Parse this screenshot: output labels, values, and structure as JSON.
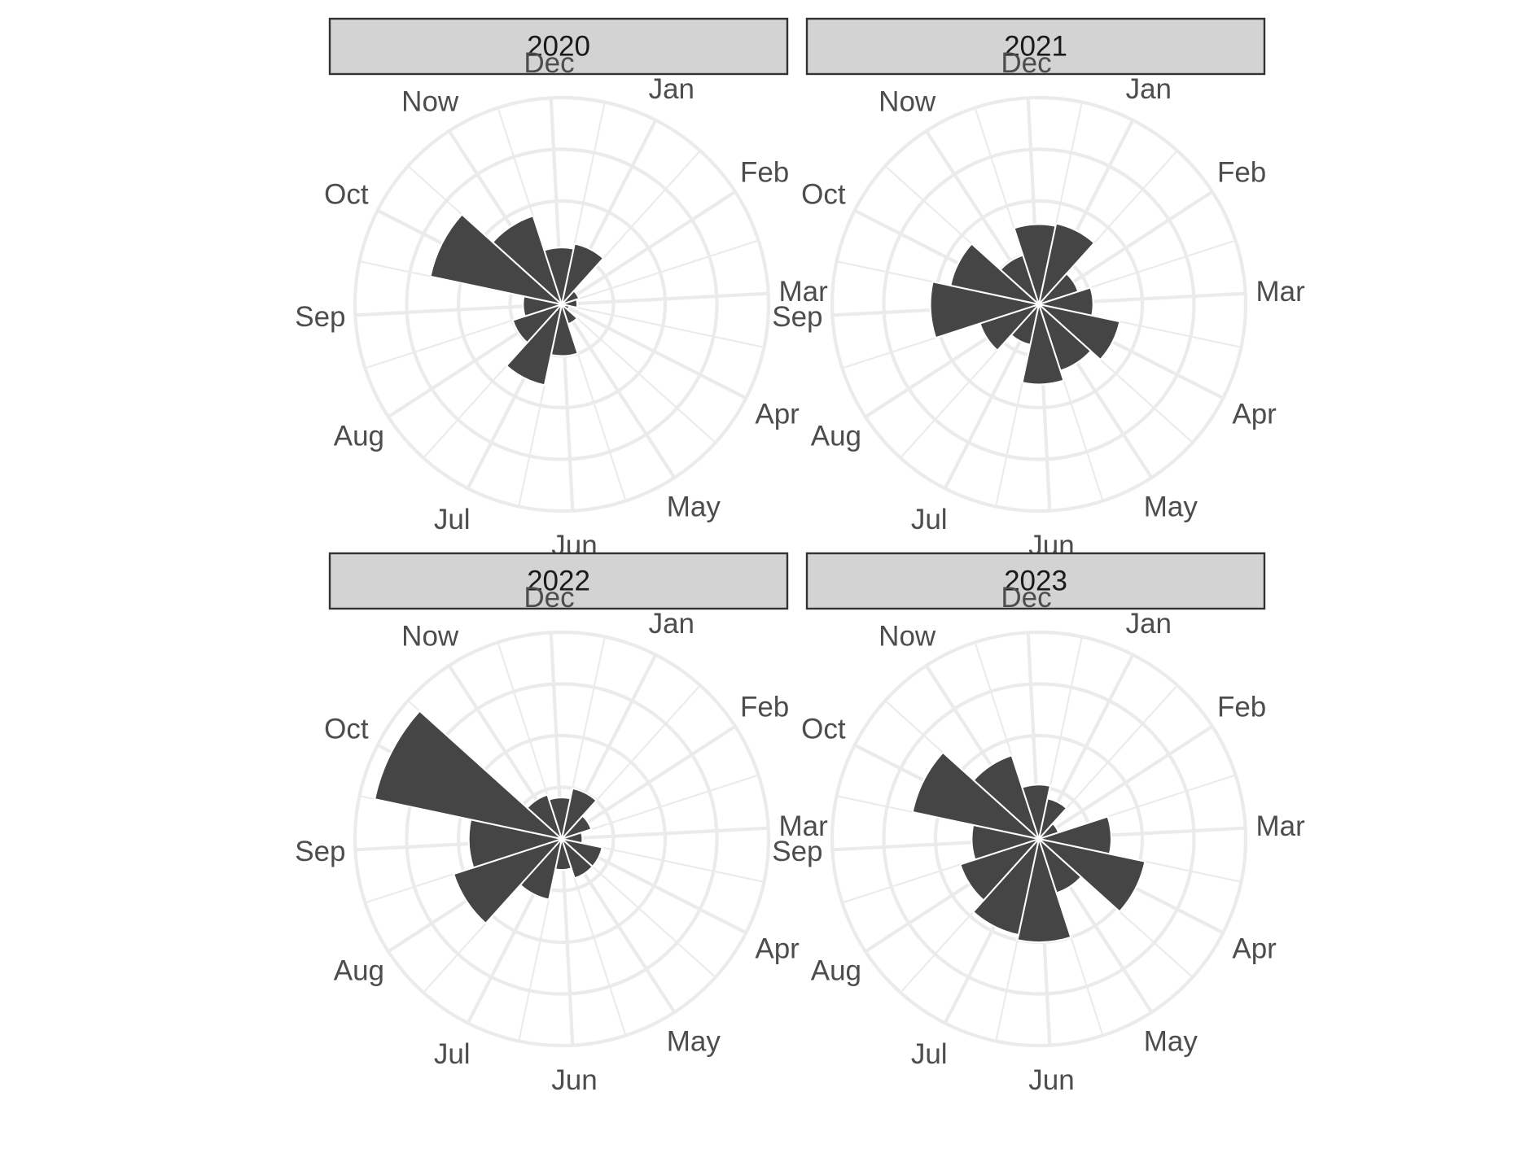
{
  "colors": {
    "bar": "#454545",
    "grid": "#ebebeb",
    "strip_fill": "#d3d3d3",
    "strip_border": "#333333",
    "month_label": "#4d4d4d",
    "strip_text": "#1a1a1a",
    "background": "#ffffff"
  },
  "chart_data": [
    {
      "type": "polar-bar",
      "title": "2020",
      "categories": [
        "Jan",
        "Feb",
        "Mar",
        "Apr",
        "May",
        "Jun",
        "Jul",
        "Aug",
        "Sep",
        "Oct",
        "Now",
        "Dec"
      ],
      "values": [
        1.2,
        0.35,
        0.3,
        0.15,
        0.4,
        1.0,
        1.6,
        1.0,
        0.75,
        2.6,
        1.8,
        1.1
      ],
      "rmax": 4,
      "grid": true
    },
    {
      "type": "polar-bar",
      "title": "2021",
      "categories": [
        "Jan",
        "Feb",
        "Mar",
        "Apr",
        "May",
        "Jun",
        "Jul",
        "Aug",
        "Sep",
        "Oct",
        "Now",
        "Dec"
      ],
      "values": [
        1.6,
        0.8,
        1.05,
        1.6,
        1.35,
        1.55,
        0.8,
        1.2,
        2.1,
        1.75,
        1.0,
        1.55
      ],
      "rmax": 4,
      "grid": true
    },
    {
      "type": "polar-bar",
      "title": "2022",
      "categories": [
        "Jan",
        "Feb",
        "Mar",
        "Apr",
        "May",
        "Jun",
        "Jul",
        "Aug",
        "Sep",
        "Oct",
        "Now",
        "Dec"
      ],
      "values": [
        1.0,
        0.6,
        0.4,
        0.8,
        0.8,
        0.6,
        1.2,
        2.2,
        1.8,
        3.7,
        0.9,
        0.8
      ],
      "rmax": 4,
      "grid": true
    },
    {
      "type": "polar-bar",
      "title": "2023",
      "categories": [
        "Jan",
        "Feb",
        "Mar",
        "Apr",
        "May",
        "Jun",
        "Jul",
        "Aug",
        "Sep",
        "Oct",
        "Now",
        "Dec"
      ],
      "values": [
        0.8,
        0.4,
        1.4,
        2.1,
        1.1,
        2.0,
        1.9,
        1.6,
        1.3,
        2.5,
        1.7,
        1.05
      ],
      "rmax": 4,
      "grid": true
    }
  ]
}
